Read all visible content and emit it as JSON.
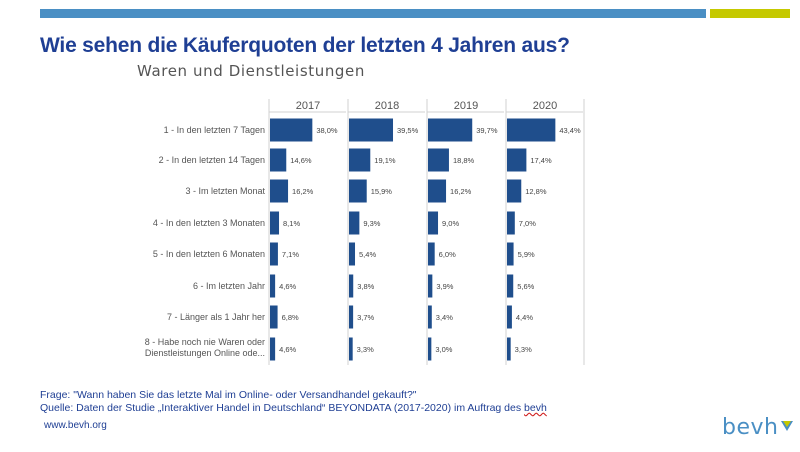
{
  "header": {
    "title": "Wie sehen die Käuferquoten der letzten 4 Jahren aus?",
    "subtitle": "Waren und Dienstleistungen"
  },
  "colors": {
    "bar": "#1f4e8c",
    "accent_blue": "#4a8fc4",
    "accent_lime": "#c5c900",
    "title": "#1f3f94"
  },
  "chart_data": {
    "type": "bar",
    "orientation": "horizontal",
    "panels": [
      "2017",
      "2018",
      "2019",
      "2020"
    ],
    "categories": [
      "1 - In den letzten 7 Tagen",
      "2 - In den letzten 14 Tagen",
      "3 - Im letzten Monat",
      "4 - In den letzten 3 Monaten",
      "5 - In den letzten 6 Monaten",
      "6 - Im letzten Jahr",
      "7 - Länger als 1 Jahr her",
      "8 - Habe noch nie Waren oder Dienstleistungen Online ode..."
    ],
    "series": [
      {
        "name": "2017",
        "values": [
          38.0,
          14.6,
          16.2,
          8.1,
          7.1,
          4.6,
          6.8,
          4.6
        ],
        "labels": [
          "38,0%",
          "14,6%",
          "16,2%",
          "8,1%",
          "7,1%",
          "4,6%",
          "6,8%",
          "4,6%"
        ]
      },
      {
        "name": "2018",
        "values": [
          39.5,
          19.1,
          15.9,
          9.3,
          5.4,
          3.8,
          3.7,
          3.3
        ],
        "labels": [
          "39,5%",
          "19,1%",
          "15,9%",
          "9,3%",
          "5,4%",
          "3,8%",
          "3,7%",
          "3,3%"
        ]
      },
      {
        "name": "2019",
        "values": [
          39.7,
          18.8,
          16.2,
          9.0,
          6.0,
          3.9,
          3.4,
          3.0
        ],
        "labels": [
          "39,7%",
          "18,8%",
          "16,2%",
          "9,0%",
          "6,0%",
          "3,9%",
          "3,4%",
          "3,0%"
        ]
      },
      {
        "name": "2020",
        "values": [
          43.4,
          17.4,
          12.8,
          7.0,
          5.9,
          5.6,
          4.4,
          3.3
        ],
        "labels": [
          "43,4%",
          "17,4%",
          "12,8%",
          "7,0%",
          "5,9%",
          "5,6%",
          "4,4%",
          "3,3%"
        ]
      }
    ],
    "xlim": [
      0,
      70
    ]
  },
  "footer": {
    "question": "Frage: \"Wann haben Sie das letzte Mal im Online- oder Versandhandel gekauft?\"",
    "source_prefix": "Quelle: Daten der Studie „Interaktiver Handel in Deutschland“ BEYONDATA (2017-2020) im Auftrag des ",
    "source_brand": "bevh",
    "url": "www.bevh.org"
  },
  "logo": {
    "text": "bevh"
  }
}
